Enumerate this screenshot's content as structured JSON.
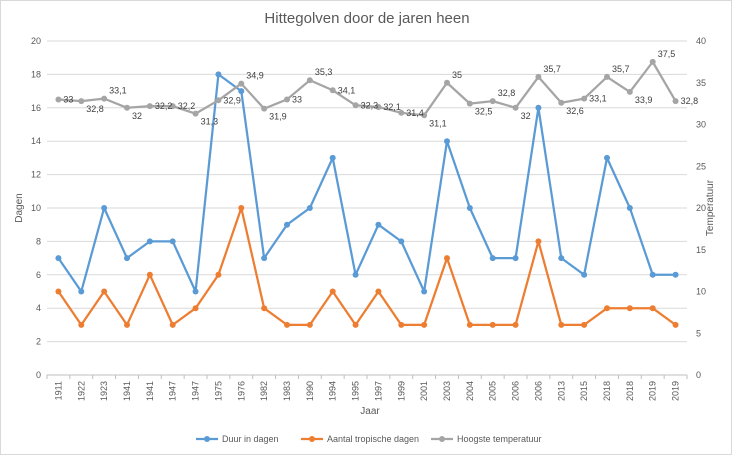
{
  "chart_data": {
    "type": "line",
    "title": "Hittegolven door de jaren heen",
    "xlabel": "Jaar",
    "ylabel": "Dagen",
    "ylabel_right": "Temperatuur",
    "ylim": [
      0,
      20
    ],
    "ylim_right": [
      0,
      40
    ],
    "yticks": [
      "0",
      "2",
      "4",
      "6",
      "8",
      "10",
      "12",
      "14",
      "16",
      "18",
      "20"
    ],
    "yticks_right": [
      "0",
      "5",
      "10",
      "15",
      "20",
      "25",
      "30",
      "35",
      "40"
    ],
    "grid": true,
    "legend_position": "bottom",
    "categories": [
      "1911",
      "1922",
      "1923",
      "1941",
      "1941",
      "1947",
      "1947",
      "1975",
      "1976",
      "1982",
      "1983",
      "1990",
      "1994",
      "1995",
      "1997",
      "1999",
      "2001",
      "2003",
      "2004",
      "2005",
      "2006",
      "2006",
      "2013",
      "2015",
      "2018",
      "2018",
      "2019",
      "2019"
    ],
    "series": [
      {
        "name": "Duur in dagen",
        "axis": "left",
        "color": "#5b9bd5",
        "values": [
          7,
          5,
          10,
          7,
          8,
          8,
          5,
          18,
          17,
          7,
          9,
          10,
          13,
          6,
          9,
          8,
          5,
          14,
          10,
          7,
          7,
          16,
          7,
          6,
          13,
          10,
          6,
          6
        ]
      },
      {
        "name": "Aantal tropische dagen",
        "axis": "left",
        "color": "#ed7d31",
        "values": [
          5,
          3,
          5,
          3,
          6,
          3,
          4,
          6,
          10,
          4,
          3,
          3,
          5,
          3,
          5,
          3,
          3,
          7,
          3,
          3,
          3,
          8,
          3,
          3,
          4,
          4,
          4,
          3
        ]
      },
      {
        "name": "Hoogste temperatuur",
        "axis": "right",
        "color": "#a5a5a5",
        "values": [
          33,
          32.8,
          33.1,
          32,
          32.2,
          32.2,
          31.3,
          32.9,
          34.9,
          31.9,
          33,
          35.3,
          34.1,
          32.3,
          32.1,
          31.4,
          31.1,
          35,
          32.5,
          32.8,
          32,
          35.7,
          32.6,
          33.1,
          35.7,
          33.9,
          37.5,
          32.8
        ],
        "data_labels": [
          "33",
          "32,8",
          "33,1",
          "32",
          "32,2",
          "32,2",
          "31,3",
          "32,9",
          "34,9",
          "31,9",
          "33",
          "35,3",
          "34,1",
          "32,3",
          "32,1",
          "31,4",
          "31,1",
          "35",
          "32,5",
          "32,8",
          "32",
          "35,7",
          "32,6",
          "33,1",
          "35,7",
          "33,9",
          "37,5",
          "32,8"
        ]
      }
    ]
  }
}
